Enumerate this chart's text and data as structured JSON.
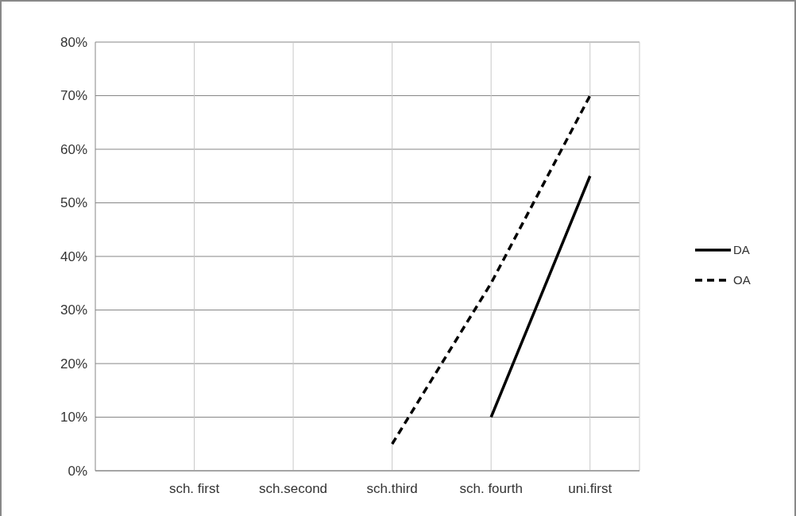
{
  "chart_data": {
    "type": "line",
    "categories": [
      "sch. first",
      "sch.second",
      "sch.third",
      "sch. fourth",
      "uni.first"
    ],
    "series": [
      {
        "name": "DA",
        "color": "#000000",
        "line_style": "solid",
        "values": [
          null,
          null,
          null,
          10,
          55
        ]
      },
      {
        "name": "OA",
        "color": "#000000",
        "line_style": "dashed",
        "values": [
          null,
          null,
          5,
          35,
          70
        ]
      }
    ],
    "ylim": [
      0,
      80
    ],
    "yticks": [
      {
        "value": 0,
        "label": "0%"
      },
      {
        "value": 10,
        "label": "10%"
      },
      {
        "value": 20,
        "label": "20%"
      },
      {
        "value": 30,
        "label": "30%"
      },
      {
        "value": 40,
        "label": "40%"
      },
      {
        "value": 50,
        "label": "50%"
      },
      {
        "value": 60,
        "label": "60%"
      },
      {
        "value": 70,
        "label": "70%"
      },
      {
        "value": 80,
        "label": "80%"
      }
    ],
    "grid": true,
    "legend": "right",
    "marker": "none"
  }
}
